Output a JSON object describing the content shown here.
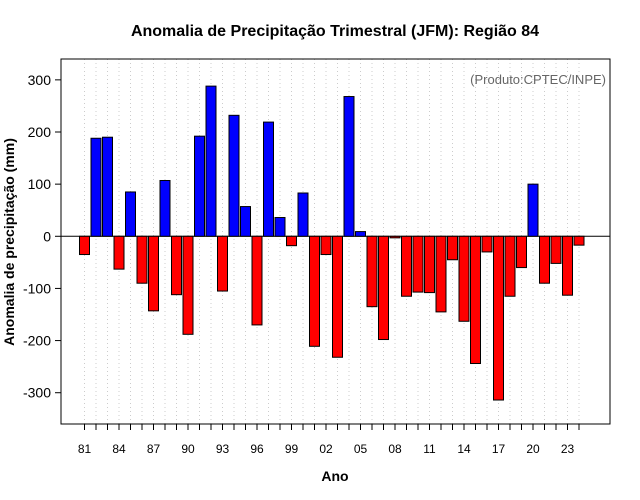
{
  "chart_data": {
    "type": "bar",
    "title": "Anomalia de Precipitação Trimestral (JFM): Região 84",
    "xlabel": "Ano",
    "ylabel": "Anomalia de precipitação (mm)",
    "credit": "(Produto:CPTEC/INPE)",
    "ylim": [
      -360,
      340
    ],
    "yticks": [
      -300,
      -200,
      -100,
      0,
      100,
      200,
      300
    ],
    "grid": true,
    "x_tick_labels": [
      "81",
      "84",
      "87",
      "90",
      "93",
      "96",
      "99",
      "02",
      "05",
      "08",
      "11",
      "14",
      "17",
      "20",
      "23"
    ],
    "categories": [
      "1981",
      "1982",
      "1983",
      "1984",
      "1985",
      "1986",
      "1987",
      "1988",
      "1989",
      "1990",
      "1991",
      "1992",
      "1993",
      "1994",
      "1995",
      "1996",
      "1997",
      "1998",
      "1999",
      "2000",
      "2001",
      "2002",
      "2003",
      "2004",
      "2005",
      "2006",
      "2007",
      "2008",
      "2009",
      "2010",
      "2011",
      "2012",
      "2013",
      "2014",
      "2015",
      "2016",
      "2017",
      "2018",
      "2019",
      "2020",
      "2021",
      "2022",
      "2023",
      "2024"
    ],
    "values": [
      -35,
      188,
      190,
      -63,
      85,
      -90,
      -143,
      107,
      -112,
      -188,
      192,
      288,
      -105,
      232,
      57,
      -170,
      219,
      36,
      -18,
      83,
      -211,
      -35,
      -232,
      268,
      9,
      -135,
      -198,
      -3,
      -115,
      -107,
      -108,
      -145,
      -45,
      -163,
      -244,
      -30,
      -314,
      -115,
      -60,
      100,
      -90,
      -52,
      -113,
      -17
    ],
    "positive_color": "#0000ff",
    "negative_color": "#ff0000"
  }
}
